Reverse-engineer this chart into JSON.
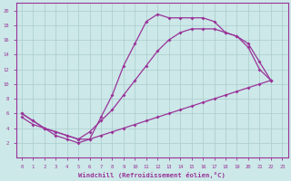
{
  "xlabel": "Windchill (Refroidissement éolien,°C)",
  "bg_color": "#cce8e8",
  "line_color": "#993399",
  "grid_color": "#aacccc",
  "xlim": [
    -0.5,
    23.5
  ],
  "ylim": [
    0,
    21
  ],
  "xticks": [
    0,
    1,
    2,
    3,
    4,
    5,
    6,
    7,
    8,
    9,
    10,
    11,
    12,
    13,
    14,
    15,
    16,
    17,
    18,
    19,
    20,
    21,
    22,
    23
  ],
  "yticks": [
    2,
    4,
    6,
    8,
    10,
    12,
    14,
    16,
    18,
    20
  ],
  "line1_x": [
    0,
    1,
    2,
    3,
    4,
    5,
    6,
    7,
    8,
    9,
    10,
    11,
    12,
    13,
    14,
    15,
    16,
    17,
    18,
    19,
    20,
    21,
    22
  ],
  "line1_y": [
    6,
    5,
    4.0,
    3.0,
    2.5,
    2.0,
    2.5,
    5.5,
    8.5,
    12.5,
    15.5,
    18.5,
    19.5,
    19.0,
    19.0,
    19.0,
    19.0,
    18.5,
    17.0,
    16.5,
    15.0,
    12.0,
    10.5
  ],
  "line2_x": [
    0,
    1,
    2,
    3,
    4,
    5,
    6,
    7,
    8,
    9,
    10,
    11,
    12,
    13,
    14,
    15,
    16,
    17,
    18,
    19,
    20,
    21,
    22
  ],
  "line2_y": [
    6,
    5,
    4.0,
    3.5,
    3.0,
    2.5,
    3.5,
    5.0,
    6.5,
    8.5,
    10.5,
    12.5,
    14.5,
    16.0,
    17.0,
    17.5,
    17.5,
    17.5,
    17.0,
    16.5,
    15.5,
    13.0,
    10.5
  ],
  "line3_x": [
    0,
    1,
    2,
    3,
    4,
    5,
    6,
    7,
    8,
    9,
    10,
    11,
    12,
    13,
    14,
    15,
    16,
    17,
    18,
    19,
    20,
    21,
    22
  ],
  "line3_y": [
    5.5,
    4.5,
    4.0,
    3.5,
    3.0,
    2.5,
    2.5,
    3.0,
    3.5,
    4.0,
    4.5,
    5.0,
    5.5,
    6.0,
    6.5,
    7.0,
    7.5,
    8.0,
    8.5,
    9.0,
    9.5,
    10.0,
    10.5
  ]
}
